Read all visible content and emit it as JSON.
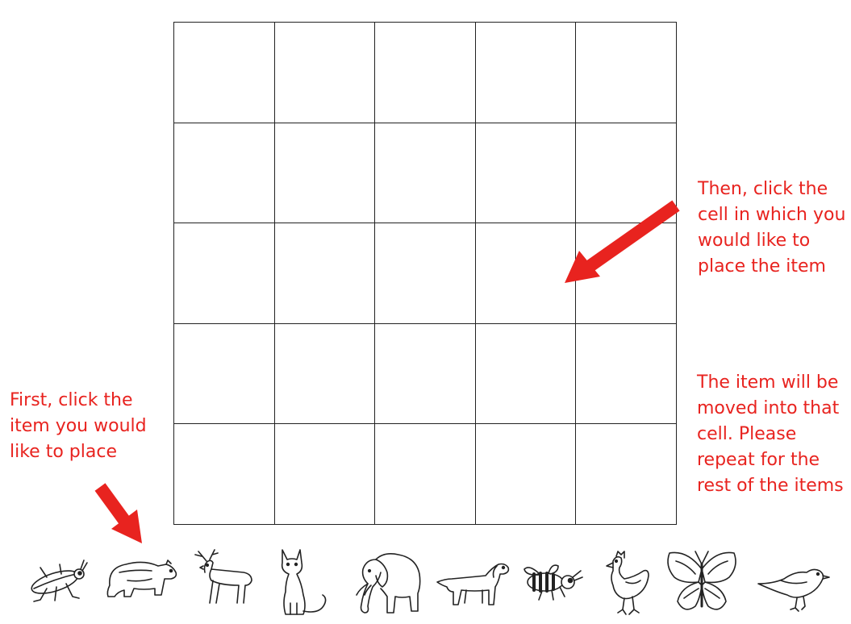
{
  "instructions": {
    "first": "First, click the\nitem you would\nlike to place",
    "then": "Then, click the\ncell in which you\nwould like to\nplace the item",
    "after": "The item will be\nmoved into that\ncell. Please\nrepeat for the\nrest of the items"
  },
  "grid": {
    "rows": 5,
    "cols": 5
  },
  "items": [
    {
      "name": "beetle-icon"
    },
    {
      "name": "bear-icon"
    },
    {
      "name": "deer-icon"
    },
    {
      "name": "cat-icon"
    },
    {
      "name": "elephant-icon"
    },
    {
      "name": "dog-icon"
    },
    {
      "name": "bee-icon"
    },
    {
      "name": "chicken-icon"
    },
    {
      "name": "butterfly-icon"
    },
    {
      "name": "sparrow-icon"
    }
  ],
  "colors": {
    "instruction": "#e8231f",
    "arrow": "#e8231f",
    "grid_line": "#222222"
  }
}
